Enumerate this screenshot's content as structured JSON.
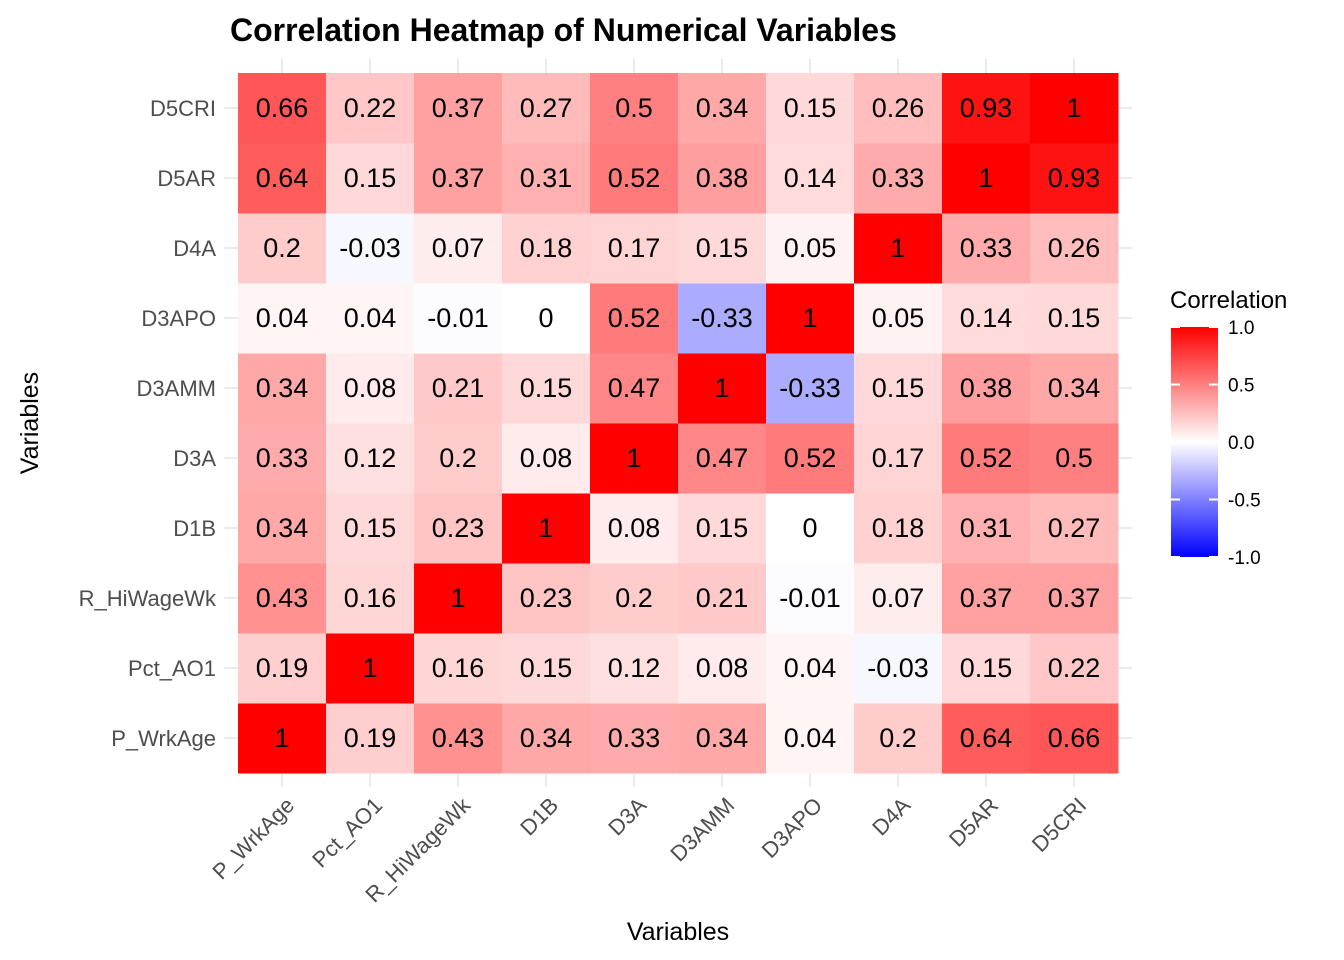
{
  "chart_data": {
    "type": "heatmap",
    "title": "Correlation Heatmap of Numerical Variables",
    "xlabel": "Variables",
    "ylabel": "Variables",
    "x_categories": [
      "P_WrkAge",
      "Pct_AO1",
      "R_HiWageWk",
      "D1B",
      "D3A",
      "D3AMM",
      "D3APO",
      "D4A",
      "D5AR",
      "D5CRI"
    ],
    "y_categories": [
      "P_WrkAge",
      "Pct_AO1",
      "R_HiWageWk",
      "D1B",
      "D3A",
      "D3AMM",
      "D3APO",
      "D4A",
      "D5AR",
      "D5CRI"
    ],
    "values": [
      [
        1,
        0.19,
        0.43,
        0.34,
        0.33,
        0.34,
        0.04,
        0.2,
        0.64,
        0.66
      ],
      [
        0.19,
        1,
        0.16,
        0.15,
        0.12,
        0.08,
        0.04,
        -0.03,
        0.15,
        0.22
      ],
      [
        0.43,
        0.16,
        1,
        0.23,
        0.2,
        0.21,
        -0.01,
        0.07,
        0.37,
        0.37
      ],
      [
        0.34,
        0.15,
        0.23,
        1,
        0.08,
        0.15,
        0,
        0.18,
        0.31,
        0.27
      ],
      [
        0.33,
        0.12,
        0.2,
        0.08,
        1,
        0.47,
        0.52,
        0.17,
        0.52,
        0.5
      ],
      [
        0.34,
        0.08,
        0.21,
        0.15,
        0.47,
        1,
        -0.33,
        0.15,
        0.38,
        0.34
      ],
      [
        0.04,
        0.04,
        -0.01,
        0,
        0.52,
        -0.33,
        1,
        0.05,
        0.14,
        0.15
      ],
      [
        0.2,
        -0.03,
        0.07,
        0.18,
        0.17,
        0.15,
        0.05,
        1,
        0.33,
        0.26
      ],
      [
        0.64,
        0.15,
        0.37,
        0.31,
        0.52,
        0.38,
        0.14,
        0.33,
        1,
        0.93
      ],
      [
        0.66,
        0.22,
        0.37,
        0.27,
        0.5,
        0.34,
        0.15,
        0.26,
        0.93,
        1
      ]
    ],
    "color_range": [
      -1,
      1
    ],
    "colors": {
      "low": "#0000ff",
      "mid": "#ffffff",
      "high": "#ff0000"
    },
    "legend": {
      "title": "Correlation",
      "ticks": [
        "1.0",
        "0.5",
        "0.0",
        "-0.5",
        "-1.0"
      ],
      "position": "right"
    },
    "grid": true
  }
}
